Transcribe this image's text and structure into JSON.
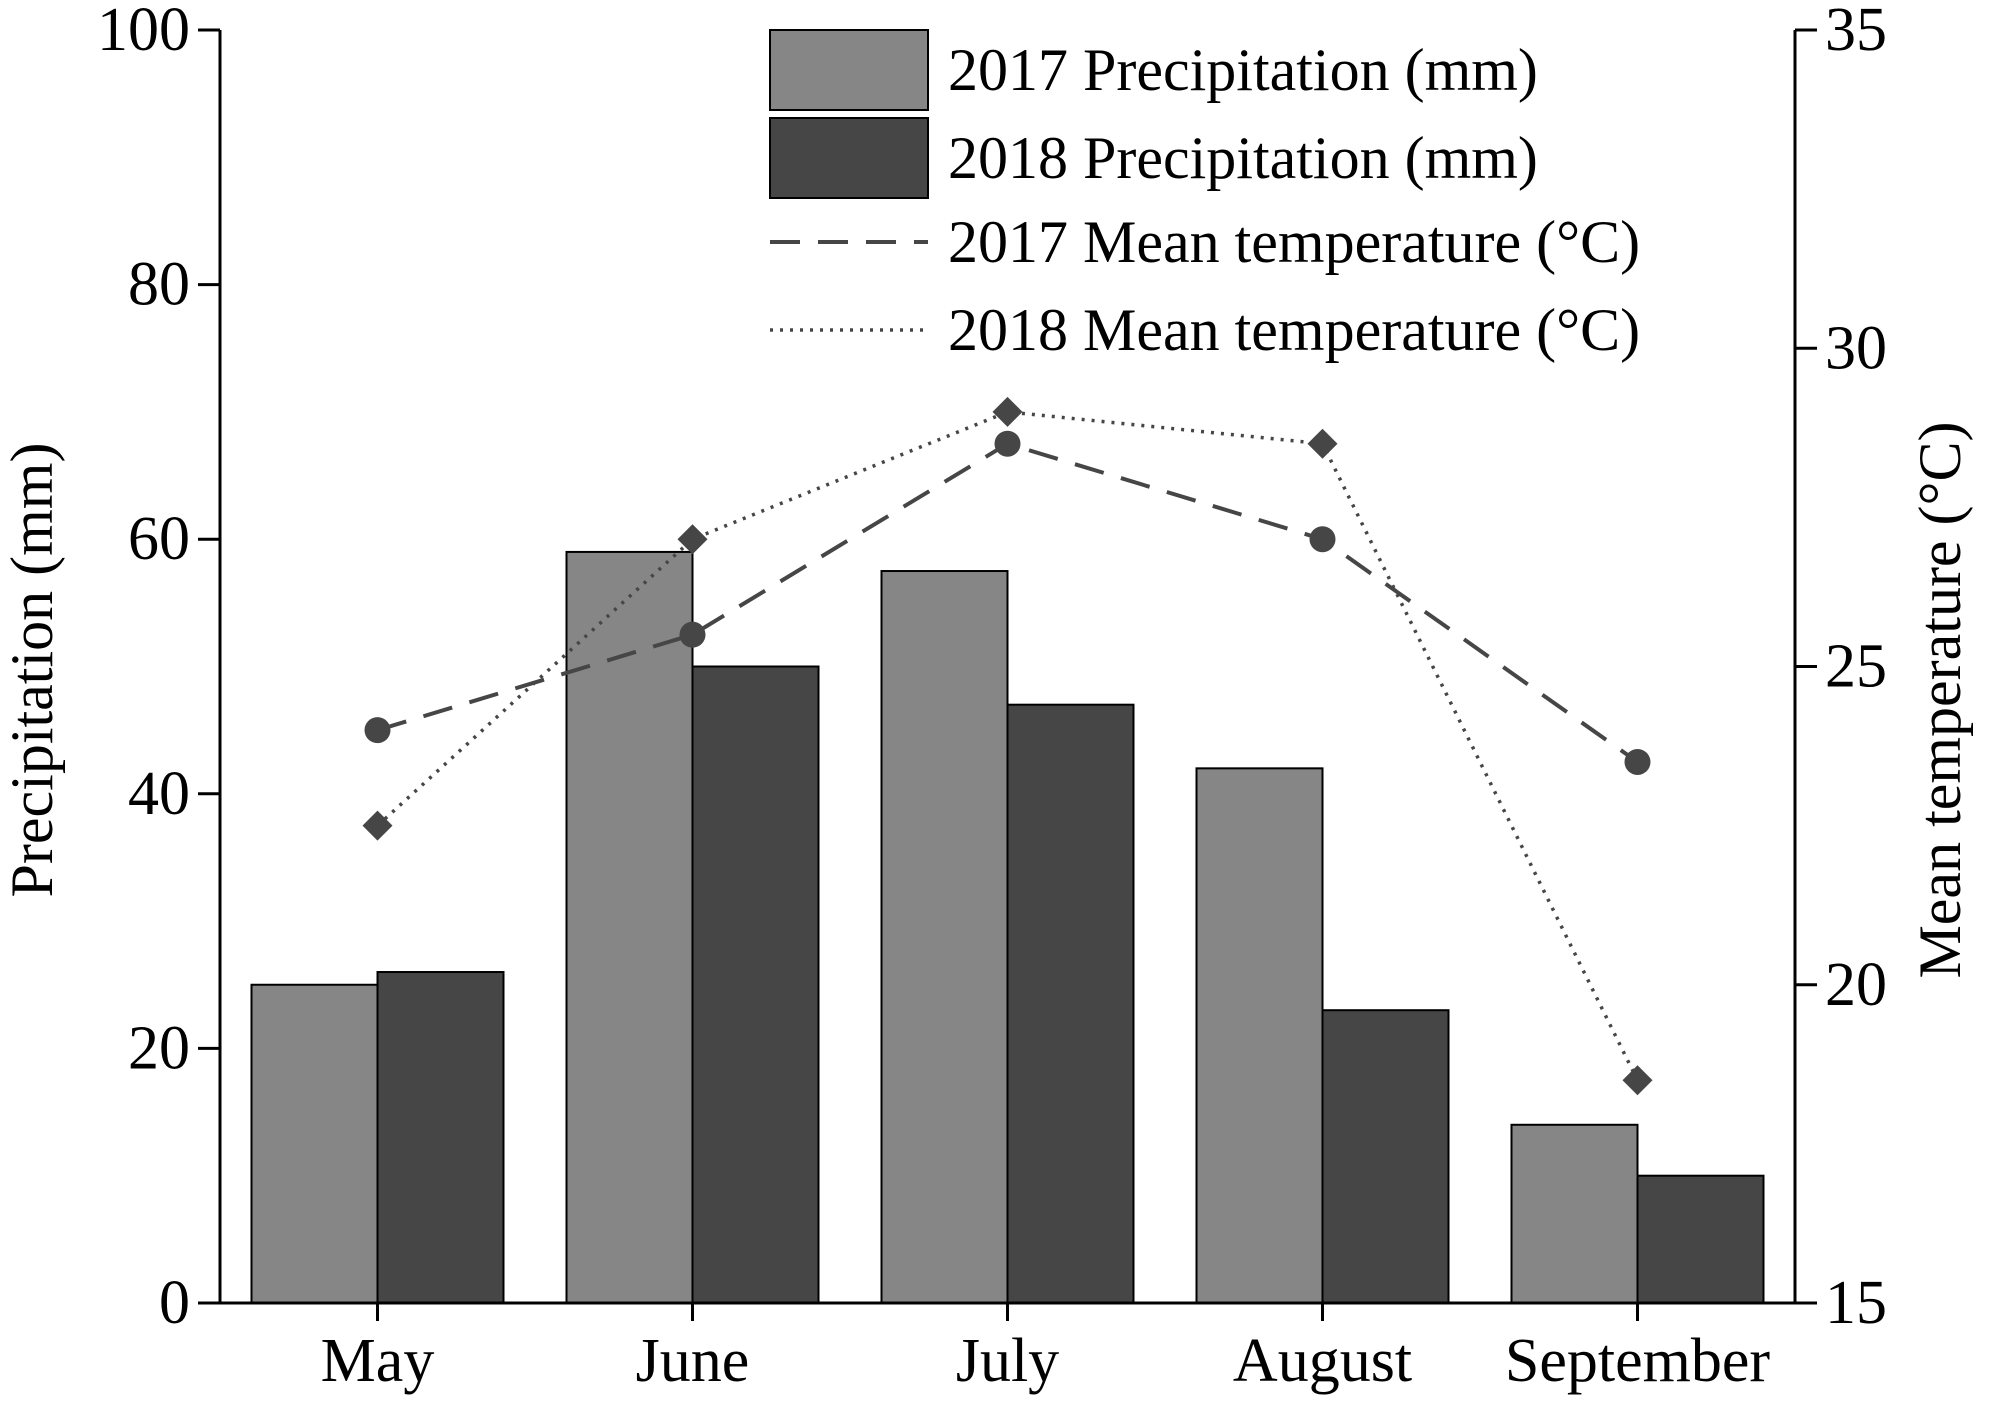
{
  "chart_data": {
    "type": "bar",
    "categories": [
      "May",
      "June",
      "July",
      "August",
      "September"
    ],
    "ylabel": "Precipitation (mm)",
    "y2label": "Mean temperature (°C)",
    "ylim": [
      0,
      100
    ],
    "y2lim": [
      15,
      35
    ],
    "yticks": [
      "0",
      "20",
      "40",
      "60",
      "80",
      "100"
    ],
    "y2ticks": [
      "15",
      "20",
      "25",
      "30",
      "35"
    ],
    "grid": false,
    "legend_position": "top-right",
    "series": [
      {
        "name": "2017 Precipitation (mm)",
        "kind": "bar",
        "axis": "left",
        "color": "#868686",
        "values": [
          25,
          59,
          57.5,
          42,
          14
        ]
      },
      {
        "name": "2018 Precipitation (mm)",
        "kind": "bar",
        "axis": "left",
        "color": "#464646",
        "values": [
          26,
          50,
          47,
          23,
          10
        ]
      },
      {
        "name": "2017 Mean temperature (°C)",
        "kind": "line",
        "axis": "right",
        "line_style": "dashed",
        "marker": "circle",
        "color": "#464646",
        "values": [
          24,
          25.5,
          28.5,
          27,
          23.5
        ]
      },
      {
        "name": "2018 Mean temperature (°C)",
        "kind": "line",
        "axis": "right",
        "line_style": "dotted",
        "marker": "diamond",
        "color": "#464646",
        "values": [
          22.5,
          27,
          29,
          28.5,
          18.5
        ]
      }
    ]
  }
}
